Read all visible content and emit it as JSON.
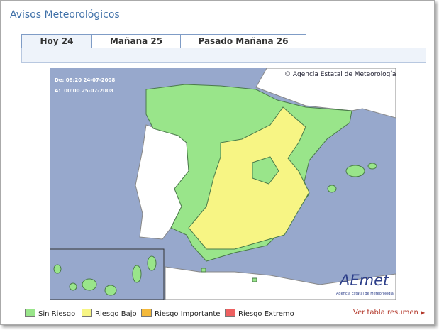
{
  "header": {
    "title": "Avisos Meteorológicos"
  },
  "tabs": [
    {
      "label": "Hoy 24",
      "active": true
    },
    {
      "label": "Mañana 25",
      "active": false
    },
    {
      "label": "Pasado Mañana 26",
      "active": false
    }
  ],
  "map": {
    "valid_from": "De: 08:20 24-07-2008",
    "valid_to": "A:  00:00 25-07-2008",
    "copyright": "© Agencia Estatal de Meteorología",
    "logo": "AEmet",
    "logo_caption": "Agencia Estatal de Meteorología"
  },
  "legend": [
    {
      "label": "Sin Riesgo",
      "color": "#99e58a"
    },
    {
      "label": "Riesgo Bajo",
      "color": "#f7f584"
    },
    {
      "label": "Riesgo Importante",
      "color": "#f4b93a"
    },
    {
      "label": "Riesgo Extremo",
      "color": "#ee6060"
    }
  ],
  "summary_link": "Ver tabla resumen"
}
